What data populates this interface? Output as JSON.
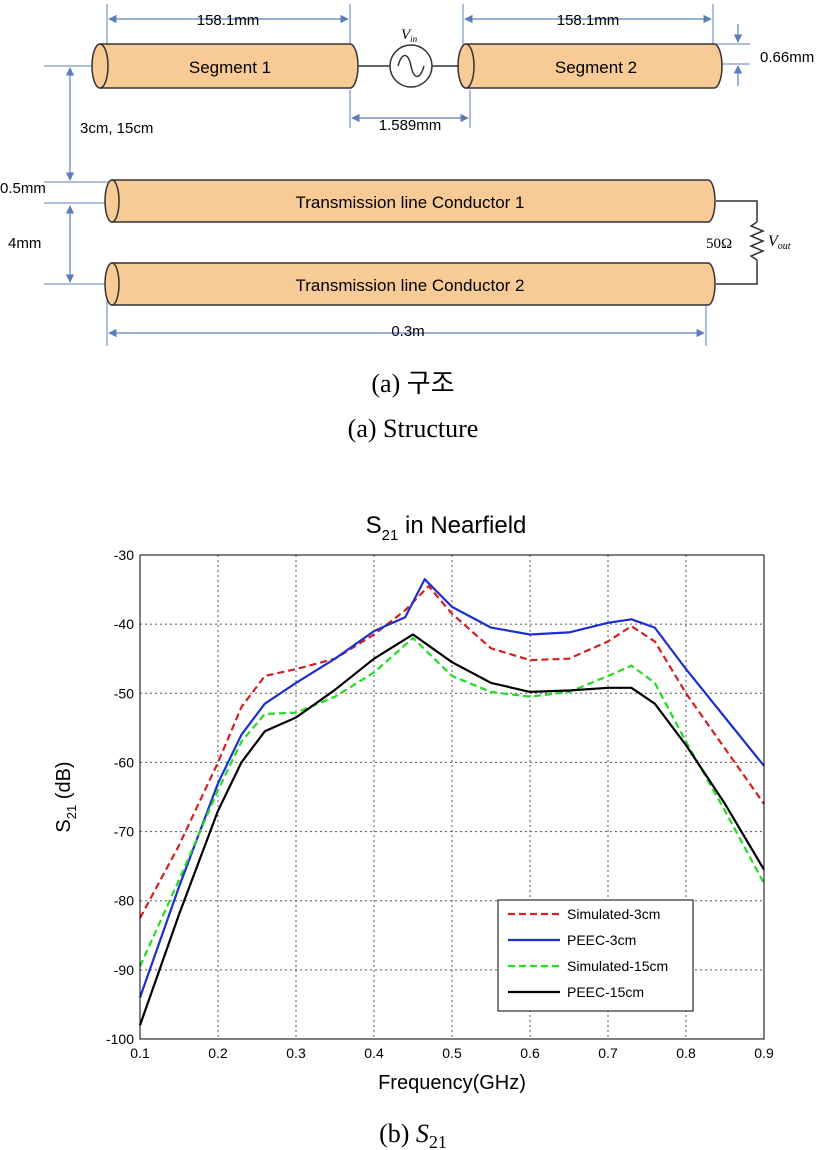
{
  "structure": {
    "seg_left_len": "158.1mm",
    "seg_right_len": "158.1mm",
    "seg1_label": "Segment 1",
    "seg2_label": "Segment 2",
    "vin_main": "V",
    "vin_sub": "in",
    "gap_label": "1.589mm",
    "diam_label": "0.66mm",
    "height_label": "3cm, 15cm",
    "tl_diam_label": "0.5mm",
    "tl_spacing_label": "4mm",
    "tl1_label": "Transmission line Conductor 1",
    "tl2_label": "Transmission line Conductor 2",
    "tl_len_label": "0.3m",
    "load_label": "50Ω",
    "vout_main": "V",
    "vout_sub": "out",
    "cap_kr": "(a)  구조",
    "cap_en": "(a)  Structure",
    "colors": {
      "cylinder_fill": "#f8cb96",
      "cylinder_stroke": "#333333",
      "dim_line": "#5b7fb5"
    }
  },
  "chart_data": {
    "type": "line",
    "title_main": "S",
    "title_sub": "21",
    "title_rest": " in Nearfield",
    "xlabel": "Frequency(GHz)",
    "ylabel_main": "S",
    "ylabel_sub": "21",
    "ylabel_rest": " (dB)",
    "xlim": [
      0.1,
      0.9
    ],
    "ylim": [
      -100,
      -30
    ],
    "xticks": [
      "0.1",
      "0.2",
      "0.3",
      "0.4",
      "0.5",
      "0.6",
      "0.7",
      "0.8",
      "0.9"
    ],
    "yticks": [
      "-30",
      "-40",
      "-50",
      "-60",
      "-70",
      "-80",
      "-90",
      "-100"
    ],
    "grid": true,
    "legend_position": "bottom-right",
    "series": [
      {
        "name": "Simulated-3cm",
        "color": "#d42020",
        "dash": true,
        "points": [
          [
            0.1,
            -82.5
          ],
          [
            0.15,
            -72
          ],
          [
            0.2,
            -60
          ],
          [
            0.23,
            -52
          ],
          [
            0.26,
            -47.5
          ],
          [
            0.3,
            -46.5
          ],
          [
            0.35,
            -45
          ],
          [
            0.4,
            -41.5
          ],
          [
            0.44,
            -38
          ],
          [
            0.47,
            -34.5
          ],
          [
            0.5,
            -38.5
          ],
          [
            0.55,
            -43.5
          ],
          [
            0.6,
            -45.2
          ],
          [
            0.65,
            -45
          ],
          [
            0.7,
            -42.5
          ],
          [
            0.73,
            -40.3
          ],
          [
            0.76,
            -42.5
          ],
          [
            0.8,
            -50
          ],
          [
            0.85,
            -58
          ],
          [
            0.9,
            -66
          ]
        ]
      },
      {
        "name": "PEEC-3cm",
        "color": "#1c2fd1",
        "dash": false,
        "points": [
          [
            0.1,
            -94
          ],
          [
            0.15,
            -78
          ],
          [
            0.2,
            -63
          ],
          [
            0.23,
            -56
          ],
          [
            0.26,
            -51.5
          ],
          [
            0.3,
            -48.5
          ],
          [
            0.35,
            -45
          ],
          [
            0.4,
            -41
          ],
          [
            0.44,
            -39
          ],
          [
            0.465,
            -33.5
          ],
          [
            0.5,
            -37.5
          ],
          [
            0.55,
            -40.5
          ],
          [
            0.6,
            -41.5
          ],
          [
            0.65,
            -41.2
          ],
          [
            0.7,
            -39.8
          ],
          [
            0.73,
            -39.3
          ],
          [
            0.76,
            -40.5
          ],
          [
            0.8,
            -46.5
          ],
          [
            0.85,
            -53.5
          ],
          [
            0.9,
            -60.5
          ]
        ]
      },
      {
        "name": "Simulated-15cm",
        "color": "#22dd22",
        "dash": true,
        "points": [
          [
            0.1,
            -89.5
          ],
          [
            0.15,
            -77
          ],
          [
            0.2,
            -64
          ],
          [
            0.23,
            -57
          ],
          [
            0.26,
            -53
          ],
          [
            0.3,
            -52.8
          ],
          [
            0.35,
            -50.5
          ],
          [
            0.4,
            -47
          ],
          [
            0.45,
            -42
          ],
          [
            0.5,
            -47.5
          ],
          [
            0.55,
            -49.8
          ],
          [
            0.6,
            -50.5
          ],
          [
            0.65,
            -49.8
          ],
          [
            0.7,
            -47.5
          ],
          [
            0.73,
            -46
          ],
          [
            0.76,
            -48.5
          ],
          [
            0.8,
            -57
          ],
          [
            0.85,
            -67
          ],
          [
            0.9,
            -77.5
          ]
        ]
      },
      {
        "name": "PEEC-15cm",
        "color": "#000000",
        "dash": false,
        "points": [
          [
            0.1,
            -98
          ],
          [
            0.15,
            -82
          ],
          [
            0.2,
            -67
          ],
          [
            0.23,
            -60
          ],
          [
            0.26,
            -55.5
          ],
          [
            0.3,
            -53.5
          ],
          [
            0.35,
            -49.5
          ],
          [
            0.4,
            -45
          ],
          [
            0.45,
            -41.5
          ],
          [
            0.5,
            -45.5
          ],
          [
            0.55,
            -48.5
          ],
          [
            0.6,
            -49.8
          ],
          [
            0.65,
            -49.6
          ],
          [
            0.7,
            -49.2
          ],
          [
            0.73,
            -49.2
          ],
          [
            0.76,
            -51.5
          ],
          [
            0.8,
            -57.5
          ],
          [
            0.85,
            -66
          ],
          [
            0.9,
            -75.5
          ]
        ]
      }
    ]
  },
  "cap_b_main": "(b)  ",
  "cap_b_italic": "S",
  "cap_b_sub": "21"
}
